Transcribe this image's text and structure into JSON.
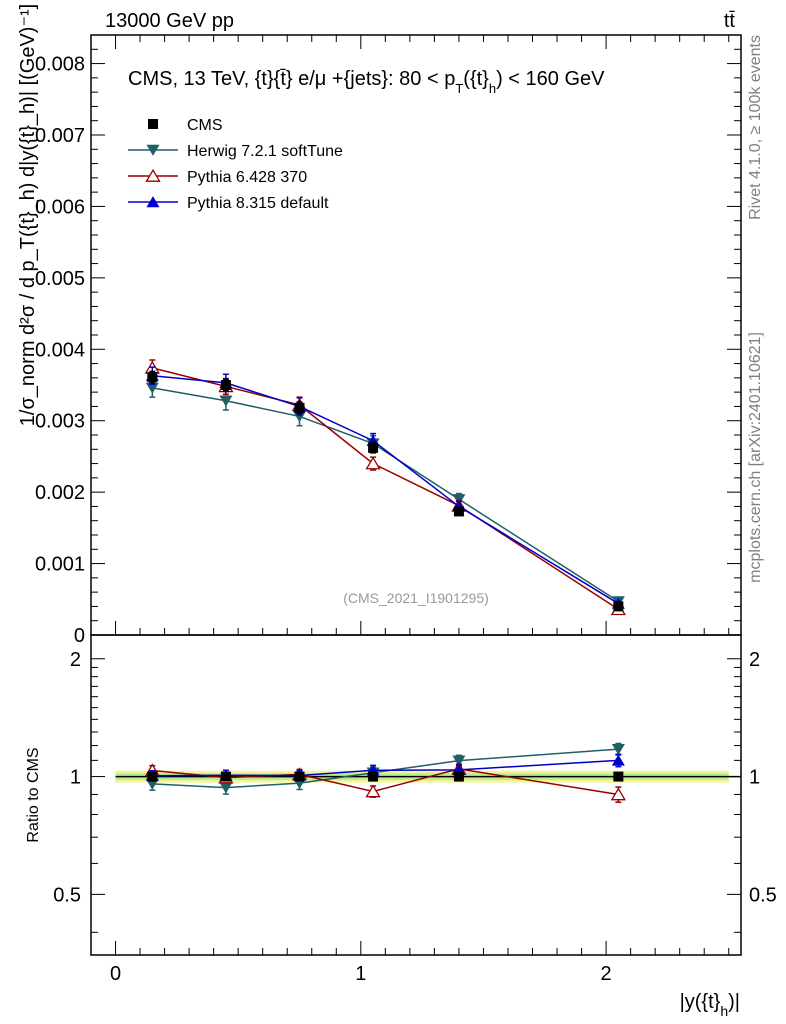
{
  "header": {
    "left": "13000 GeV pp",
    "right": "tt̄"
  },
  "side_labels": {
    "rivet": "Rivet 4.1.0, ≥ 100k events",
    "mcplots": "mcplots.cern.ch [arXiv:2401.10621]"
  },
  "chart_data": [
    {
      "type": "line",
      "title": "CMS, 13 TeV, {t}{t̄} e/μ +{jets}: 80 <  p_T({t}_h) < 160 GeV",
      "reference": "(CMS_2021_I1901295)",
      "xlabel": "|y({t}_h)|",
      "ylabel": "1/σ_norm d²σ / d p_T({t}_h) d|y({t}_h)| [(GeV)⁻¹]",
      "xlim": [
        -0.1,
        2.55
      ],
      "ylim": [
        0,
        0.0084
      ],
      "yticks": [
        "0.008",
        "0.007",
        "0.006",
        "0.005",
        "0.004",
        "0.003",
        "0.002",
        "0.001",
        "0"
      ],
      "x": [
        0.15,
        0.45,
        0.75,
        1.05,
        1.4,
        2.05
      ],
      "legend": [
        "CMS",
        "Herwig 7.2.1 softTune",
        "Pythia 6.428 370",
        "Pythia 8.315 default"
      ],
      "series": [
        {
          "name": "CMS",
          "color": "#000000",
          "marker": "square",
          "values": [
            0.00361,
            0.0035,
            0.00318,
            0.00262,
            0.00173,
            0.0004
          ],
          "errors": [
            8e-05,
            8e-05,
            8e-05,
            7e-05,
            5e-05,
            2e-05
          ]
        },
        {
          "name": "Herwig 7.2.1 softTune",
          "color": "#1f5f66",
          "marker": "triangle-down",
          "values": [
            0.00346,
            0.00328,
            0.00306,
            0.00268,
            0.0019,
            0.00047
          ],
          "errors": [
            0.00013,
            0.00013,
            0.00013,
            0.00011,
            8e-05,
            3e-05
          ]
        },
        {
          "name": "Pythia 6.428 370",
          "color": "#990000",
          "marker": "triangle-up-open",
          "values": [
            0.00374,
            0.00348,
            0.00322,
            0.0024,
            0.00181,
            0.00036
          ],
          "errors": [
            0.00011,
            0.00011,
            0.00011,
            9e-05,
            7e-05,
            3e-05
          ]
        },
        {
          "name": "Pythia 8.315 default",
          "color": "#0000cc",
          "marker": "triangle-up",
          "values": [
            0.00363,
            0.00353,
            0.0032,
            0.00272,
            0.0018,
            0.00044
          ],
          "errors": [
            0.00012,
            0.00012,
            0.00012,
            0.0001,
            7e-05,
            3e-05
          ]
        }
      ]
    },
    {
      "type": "line",
      "title": "",
      "xlabel": "|y({t}_h)|",
      "ylabel": "Ratio to CMS",
      "xlim": [
        -0.1,
        2.55
      ],
      "ylim": [
        0.35,
        2.3
      ],
      "yscale": "log",
      "yticks": [
        "2",
        "1",
        "0.5"
      ],
      "xticks": [
        "0",
        "1",
        "2"
      ],
      "band": {
        "center": 1.0,
        "inner": 0.02,
        "outer": 0.035,
        "x_from": 0.0,
        "x_to": 2.5
      },
      "x": [
        0.15,
        0.45,
        0.75,
        1.05,
        1.4,
        2.05
      ],
      "series": [
        {
          "name": "CMS",
          "color": "#000000",
          "marker": "square",
          "values": [
            1.0,
            1.0,
            1.0,
            1.0,
            1.0,
            1.0
          ],
          "errors": [
            0,
            0,
            0,
            0,
            0,
            0
          ]
        },
        {
          "name": "Herwig 7.2.1 softTune",
          "color": "#1f5f66",
          "marker": "triangle-down",
          "values": [
            0.958,
            0.937,
            0.962,
            1.023,
            1.098,
            1.175
          ],
          "errors": [
            0.035,
            0.035,
            0.035,
            0.035,
            0.035,
            0.04
          ]
        },
        {
          "name": "Pythia 6.428 370",
          "color": "#990000",
          "marker": "triangle-up-open",
          "values": [
            1.036,
            0.994,
            1.013,
            0.916,
            1.046,
            0.9
          ],
          "errors": [
            0.03,
            0.03,
            0.03,
            0.03,
            0.03,
            0.04
          ]
        },
        {
          "name": "Pythia 8.315 default",
          "color": "#0000cc",
          "marker": "triangle-up",
          "values": [
            1.005,
            1.008,
            1.006,
            1.038,
            1.04,
            1.1
          ],
          "errors": [
            0.03,
            0.03,
            0.03,
            0.03,
            0.03,
            0.04
          ]
        }
      ]
    }
  ]
}
